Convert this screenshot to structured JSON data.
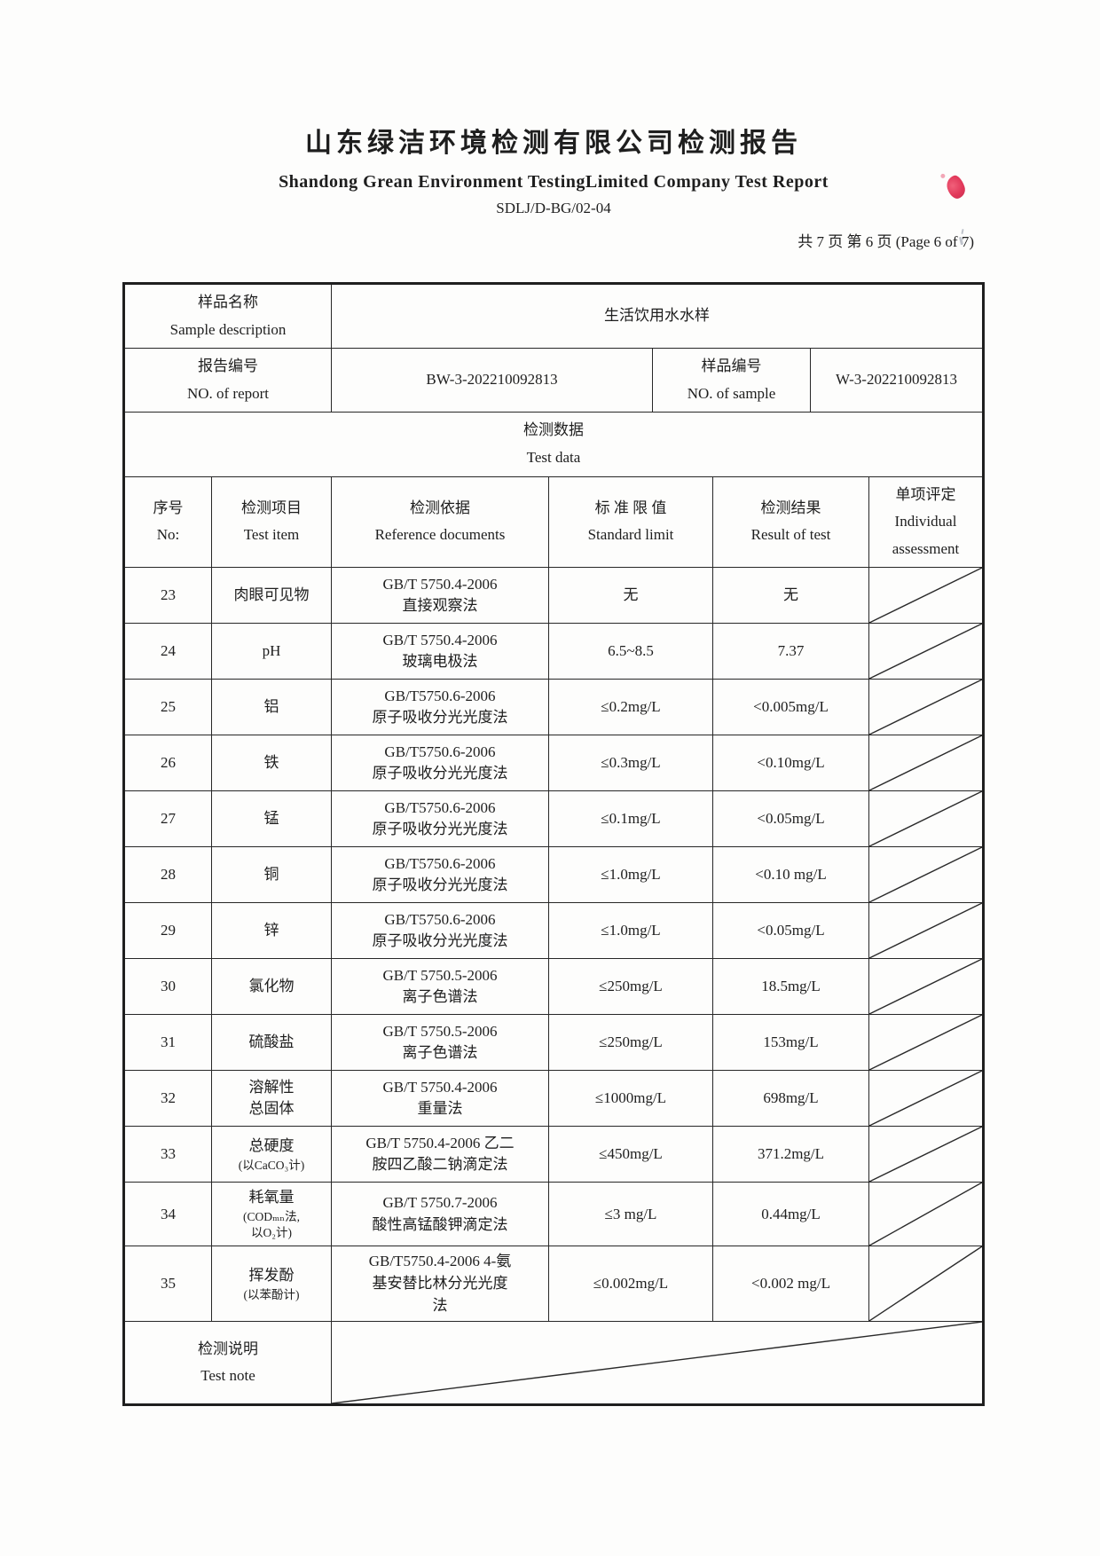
{
  "header": {
    "title": "山东绿洁环境检测有限公司检测报告",
    "subtitle": "Shandong Grean Environment TestingLimited Company Test Report",
    "doc_code": "SDLJ/D-BG/02-04",
    "page_info": "共 7 页  第 6 页  (Page 6 of 7)"
  },
  "info": {
    "sample_label": [
      "样品名称",
      "Sample description"
    ],
    "sample_value": "生活饮用水水样",
    "report_label": [
      "报告编号",
      "NO. of report"
    ],
    "report_value": "BW-3-202210092813",
    "sample_no_label": [
      "样品编号",
      "NO. of sample"
    ],
    "sample_no_value": "W-3-202210092813",
    "section_label": [
      "检测数据",
      "Test data"
    ]
  },
  "table": {
    "columns": {
      "no": [
        "序号",
        "No:"
      ],
      "item": [
        "检测项目",
        "Test item"
      ],
      "ref": [
        "检测依据",
        "Reference documents"
      ],
      "limit": [
        "标 准 限 值",
        "Standard limit"
      ],
      "result": [
        "检测结果",
        "Result of test"
      ],
      "assess": [
        "单项评定",
        "Individual",
        "assessment"
      ]
    },
    "rows": [
      {
        "no": "23",
        "item": "肉眼可见物",
        "ref": [
          "GB/T 5750.4-2006",
          "直接观察法"
        ],
        "limit": "无",
        "result": "无"
      },
      {
        "no": "24",
        "item": "pH",
        "ref": [
          "GB/T 5750.4-2006",
          "玻璃电极法"
        ],
        "limit": "6.5~8.5",
        "result": "7.37"
      },
      {
        "no": "25",
        "item": "铝",
        "ref": [
          "GB/T5750.6-2006",
          "原子吸收分光光度法"
        ],
        "limit": "≤0.2mg/L",
        "result": "<0.005mg/L"
      },
      {
        "no": "26",
        "item": "铁",
        "ref": [
          "GB/T5750.6-2006",
          "原子吸收分光光度法"
        ],
        "limit": "≤0.3mg/L",
        "result": "<0.10mg/L"
      },
      {
        "no": "27",
        "item": "锰",
        "ref": [
          "GB/T5750.6-2006",
          "原子吸收分光光度法"
        ],
        "limit": "≤0.1mg/L",
        "result": "<0.05mg/L"
      },
      {
        "no": "28",
        "item": "铜",
        "ref": [
          "GB/T5750.6-2006",
          "原子吸收分光光度法"
        ],
        "limit": "≤1.0mg/L",
        "result": "<0.10 mg/L"
      },
      {
        "no": "29",
        "item": "锌",
        "ref": [
          "GB/T5750.6-2006",
          "原子吸收分光光度法"
        ],
        "limit": "≤1.0mg/L",
        "result": "<0.05mg/L"
      },
      {
        "no": "30",
        "item": "氯化物",
        "ref": [
          "GB/T 5750.5-2006",
          "离子色谱法"
        ],
        "limit": "≤250mg/L",
        "result": "18.5mg/L"
      },
      {
        "no": "31",
        "item": "硫酸盐",
        "ref": [
          "GB/T 5750.5-2006",
          "离子色谱法"
        ],
        "limit": "≤250mg/L",
        "result": "153mg/L"
      },
      {
        "no": "32",
        "item": [
          "溶解性",
          "总固体"
        ],
        "ref": [
          "GB/T 5750.4-2006",
          "重量法"
        ],
        "limit": "≤1000mg/L",
        "result": "698mg/L"
      },
      {
        "no": "33",
        "item": "总硬度",
        "item_sub": "(以CaCO₃计)",
        "ref": [
          "GB/T 5750.4-2006 乙二",
          "胺四乙酸二钠滴定法"
        ],
        "limit": "≤450mg/L",
        "result": "371.2mg/L"
      },
      {
        "no": "34",
        "item": "耗氧量",
        "item_sub": [
          "(CODₘₙ法,",
          "以O₂计)"
        ],
        "ref": [
          "GB/T 5750.7-2006",
          "酸性高锰酸钾滴定法"
        ],
        "limit": "≤3 mg/L",
        "result": "0.44mg/L"
      },
      {
        "no": "35",
        "item": "挥发酚",
        "item_sub": "(以苯酚计)",
        "ref": [
          "GB/T5750.4-2006  4-氨",
          "基安替比林分光光度",
          "法"
        ],
        "limit": "≤0.002mg/L",
        "result": "<0.002 mg/L"
      }
    ],
    "note_label": [
      "检测说明",
      "Test note"
    ]
  }
}
